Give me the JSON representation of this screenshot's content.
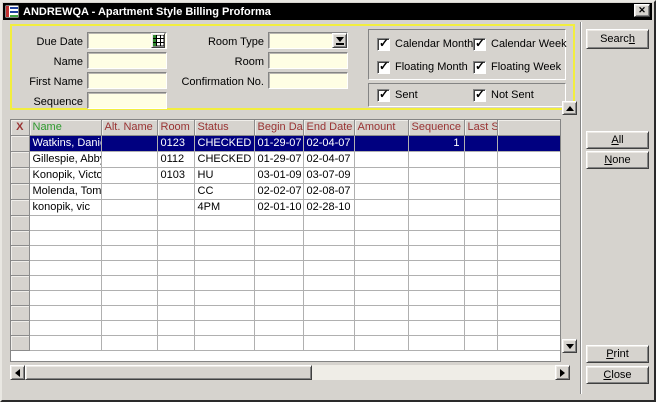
{
  "window": {
    "title": "ANDREWQA - Apartment Style Billing Proforma",
    "close_glyph": "✕"
  },
  "colors": {
    "titlebar_bg": "#000000",
    "dialog_bg": "#d6d3ce",
    "panel_border_yellow": "#f2ee3e",
    "field_bg": "#fffee4",
    "selection_bg": "#000080",
    "header_text_red": "#993333",
    "header_text_green": "#2f9a2f"
  },
  "form": {
    "due_date": {
      "label": "Due Date",
      "value": ""
    },
    "name": {
      "label": "Name",
      "value": ""
    },
    "first_name": {
      "label": "First Name",
      "value": ""
    },
    "sequence": {
      "label": "Sequence",
      "value": ""
    },
    "room_type": {
      "label": "Room Type",
      "value": ""
    },
    "room": {
      "label": "Room",
      "value": ""
    },
    "confirmation_no": {
      "label": "Confirmation No.",
      "value": ""
    }
  },
  "checkboxes": {
    "group1": [
      {
        "label": "Calendar Month",
        "checked": true
      },
      {
        "label": "Calendar Week",
        "checked": true
      },
      {
        "label": "Floating Month",
        "checked": true
      },
      {
        "label": "Floating Week",
        "checked": true
      }
    ],
    "group2": [
      {
        "label": "Sent",
        "checked": true
      },
      {
        "label": "Not Sent",
        "checked": true
      }
    ]
  },
  "buttons": {
    "search": {
      "pre": "Searc",
      "mn": "h",
      "post": ""
    },
    "all": {
      "pre": "",
      "mn": "A",
      "post": "ll"
    },
    "none": {
      "pre": "",
      "mn": "N",
      "post": "one"
    },
    "print": {
      "pre": "",
      "mn": "P",
      "post": "rint"
    },
    "close": {
      "pre": "",
      "mn": "C",
      "post": "lose"
    }
  },
  "grid": {
    "columns": [
      {
        "label": "X",
        "color": "#993333"
      },
      {
        "label": "Name",
        "color": "#2f9a2f"
      },
      {
        "label": "Alt. Name",
        "color": "#993333"
      },
      {
        "label": "Room",
        "color": "#993333"
      },
      {
        "label": "Status",
        "color": "#993333"
      },
      {
        "label": "Begin Date",
        "color": "#993333"
      },
      {
        "label": "End Date",
        "color": "#993333"
      },
      {
        "label": "Amount",
        "color": "#993333"
      },
      {
        "label": "Sequence",
        "color": "#993333"
      },
      {
        "label": "Last Se",
        "color": "#993333"
      },
      {
        "label": "",
        "color": "#993333"
      }
    ],
    "rows": [
      {
        "selected": true,
        "cells": [
          "Watkins, Daniel",
          "",
          "0123",
          "CHECKED IN",
          "01-29-07",
          "02-04-07",
          "",
          "1",
          "",
          ""
        ]
      },
      {
        "selected": false,
        "cells": [
          "Gillespie, Abby",
          "",
          "0112",
          "CHECKED IN",
          "01-29-07",
          "02-04-07",
          "",
          "",
          "",
          ""
        ]
      },
      {
        "selected": false,
        "cells": [
          "Konopik, Victoria",
          "",
          "0103",
          "HU",
          "03-01-09",
          "03-07-09",
          "",
          "",
          "",
          ""
        ]
      },
      {
        "selected": false,
        "cells": [
          "Molenda, Tom",
          "",
          "",
          "CC",
          "02-02-07",
          "02-08-07",
          "",
          "",
          "",
          ""
        ]
      },
      {
        "selected": false,
        "cells": [
          "konopik, vic",
          "",
          "",
          "4PM",
          "02-01-10",
          "02-28-10",
          "",
          "",
          "",
          ""
        ]
      }
    ],
    "empty_row_count": 9
  }
}
